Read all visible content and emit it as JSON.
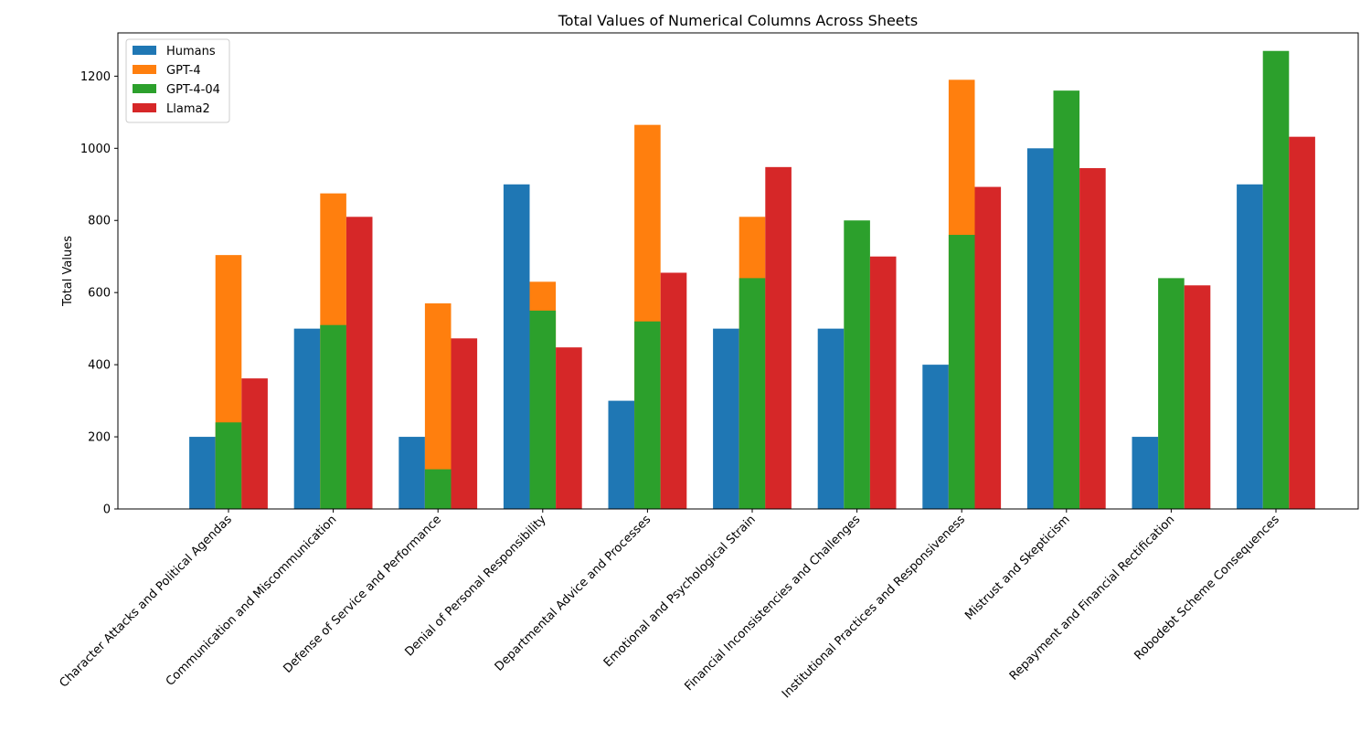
{
  "chart_data": {
    "type": "bar",
    "title": "Total Values of Numerical Columns Across Sheets",
    "xlabel": "",
    "ylabel": "Total Values",
    "ylim": [
      0,
      1320
    ],
    "yticks": [
      0,
      200,
      400,
      600,
      800,
      1000,
      1200
    ],
    "grid": false,
    "legend_position": "top-left",
    "categories": [
      "Character Attacks and Political Agendas",
      "Communication and Miscommunication",
      "Defense of Service and Performance",
      "Denial of Personal Responsibility",
      "Departmental Advice and Processes",
      "Emotional and Psychological Strain",
      "Financial Inconsistencies and Challenges",
      "Institutional Practices and Responsiveness",
      "Mistrust and Skepticism",
      "Repayment and Financial Rectification",
      "Robodebt Scheme Consequences"
    ],
    "series": [
      {
        "name": "Humans",
        "color": "#1f77b4",
        "slot": 0,
        "values": [
          200,
          500,
          200,
          900,
          300,
          500,
          500,
          400,
          1000,
          200,
          900
        ]
      },
      {
        "name": "GPT-4",
        "color": "#ff7f0e",
        "slot": 1,
        "values": [
          704,
          875,
          570,
          630,
          1065,
          810,
          0,
          1190,
          0,
          0,
          0
        ]
      },
      {
        "name": "GPT-4-04",
        "color": "#2ca02c",
        "slot": 1,
        "values": [
          240,
          510,
          110,
          550,
          520,
          640,
          800,
          760,
          1160,
          640,
          1270
        ]
      },
      {
        "name": "Llama2",
        "color": "#d62728",
        "slot": 2,
        "values": [
          362,
          810,
          473,
          448,
          655,
          948,
          700,
          893,
          945,
          620,
          1032
        ]
      }
    ]
  }
}
